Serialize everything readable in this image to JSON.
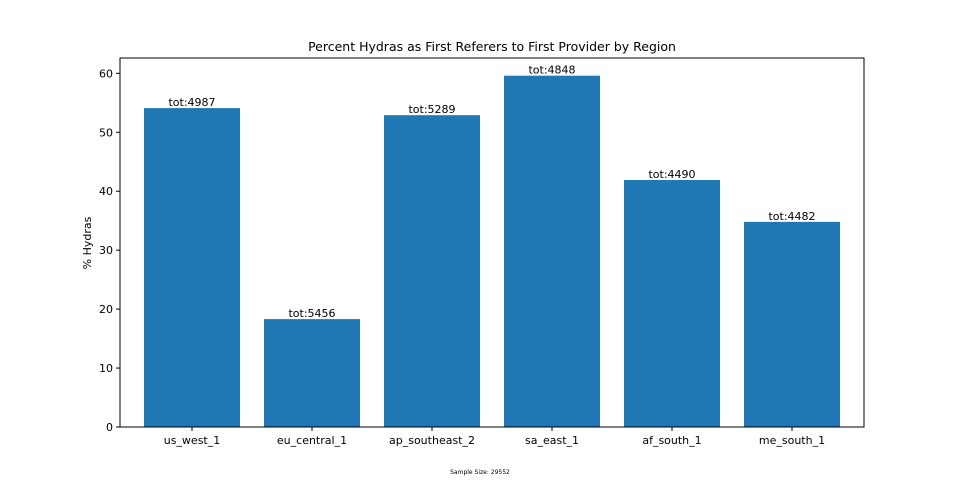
{
  "chart_data": {
    "type": "bar",
    "title": "Percent Hydras as First Referers to First Provider by Region",
    "xlabel": "",
    "ylabel": "% Hydras",
    "categories": [
      "us_west_1",
      "eu_central_1",
      "ap_southeast_2",
      "sa_east_1",
      "af_south_1",
      "me_south_1"
    ],
    "values": [
      54.1,
      18.3,
      52.9,
      59.6,
      41.9,
      34.8
    ],
    "bar_labels": [
      "tot:4987",
      "tot:5456",
      "tot:5289",
      "tot:4848",
      "tot:4490",
      "tot:4482"
    ],
    "ylim": [
      0,
      62.6
    ],
    "yticks": [
      0,
      10,
      20,
      30,
      40,
      50,
      60
    ],
    "grid": false,
    "bar_color": "#1f77b4",
    "footnote": "Sample Size: 29552"
  }
}
